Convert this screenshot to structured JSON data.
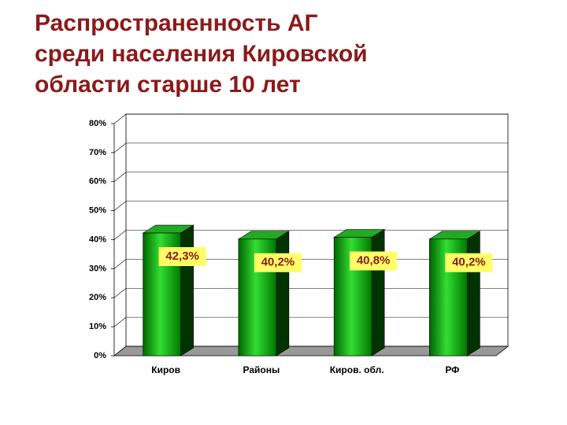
{
  "chart_data": {
    "type": "bar3d",
    "title": "Распространенность АГ\nсреди населения Кировской\nобласти старше 10 лет",
    "categories": [
      "Киров",
      "Районы",
      "Киров. обл.",
      "РФ"
    ],
    "values": [
      42.3,
      40.2,
      40.8,
      40.2
    ],
    "value_labels": [
      "42,3%",
      "40,2%",
      "40,8%",
      "40,2%"
    ],
    "color": "#00a000",
    "ylim": [
      0,
      80
    ],
    "yticks": [
      {
        "value": 0,
        "label": "0%"
      },
      {
        "value": 10,
        "label": "10%"
      },
      {
        "value": 20,
        "label": "20%"
      },
      {
        "value": 30,
        "label": "30%"
      },
      {
        "value": 40,
        "label": "40%"
      },
      {
        "value": 50,
        "label": "50%"
      },
      {
        "value": 60,
        "label": "60%"
      },
      {
        "value": 70,
        "label": "70%"
      },
      {
        "value": 80,
        "label": "80%"
      }
    ],
    "grid": true
  }
}
